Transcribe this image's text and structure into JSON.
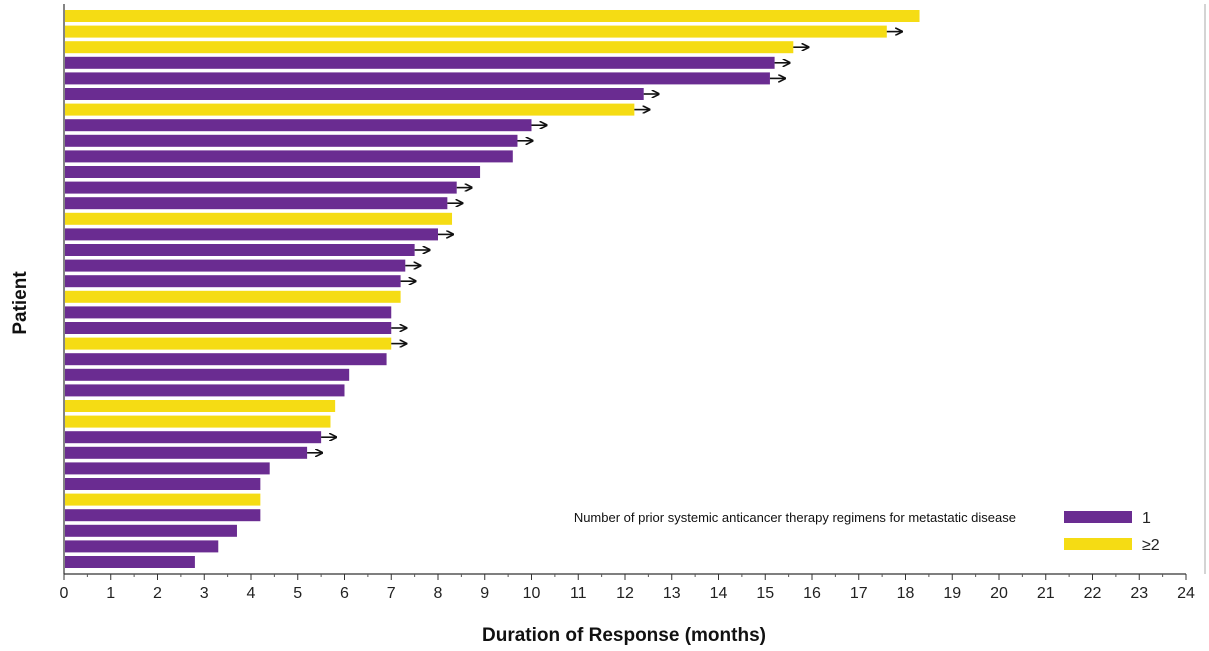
{
  "chart_data": {
    "type": "bar",
    "orientation": "horizontal",
    "xlabel": "Duration of Response (months)",
    "ylabel": "Patient",
    "xlim": [
      0,
      24
    ],
    "x_ticks": [
      0,
      1,
      2,
      3,
      4,
      5,
      6,
      7,
      8,
      9,
      10,
      11,
      12,
      13,
      14,
      15,
      16,
      17,
      18,
      19,
      20,
      21,
      22,
      23,
      24
    ],
    "grid": false,
    "legend": {
      "title": "Number of prior systemic anticancer therapy regimens for metastatic disease",
      "placement": "bottom-right",
      "entries": [
        {
          "label": "1",
          "color": "#6a2c91"
        },
        {
          "label": "≥2",
          "color": "#f5dc14"
        }
      ]
    },
    "ongoing_marker": "arrow",
    "bars": [
      {
        "value": 18.3,
        "group": "≥2",
        "ongoing": false
      },
      {
        "value": 17.6,
        "group": "≥2",
        "ongoing": true
      },
      {
        "value": 15.6,
        "group": "≥2",
        "ongoing": true
      },
      {
        "value": 15.2,
        "group": "1",
        "ongoing": true
      },
      {
        "value": 15.1,
        "group": "1",
        "ongoing": true
      },
      {
        "value": 12.4,
        "group": "1",
        "ongoing": true
      },
      {
        "value": 12.2,
        "group": "≥2",
        "ongoing": true
      },
      {
        "value": 10.0,
        "group": "1",
        "ongoing": true
      },
      {
        "value": 9.7,
        "group": "1",
        "ongoing": true
      },
      {
        "value": 9.6,
        "group": "1",
        "ongoing": false
      },
      {
        "value": 8.9,
        "group": "1",
        "ongoing": false
      },
      {
        "value": 8.4,
        "group": "1",
        "ongoing": true
      },
      {
        "value": 8.2,
        "group": "1",
        "ongoing": true
      },
      {
        "value": 8.3,
        "group": "≥2",
        "ongoing": false
      },
      {
        "value": 8.0,
        "group": "1",
        "ongoing": true
      },
      {
        "value": 7.5,
        "group": "1",
        "ongoing": true
      },
      {
        "value": 7.3,
        "group": "1",
        "ongoing": true
      },
      {
        "value": 7.2,
        "group": "1",
        "ongoing": true
      },
      {
        "value": 7.2,
        "group": "≥2",
        "ongoing": false
      },
      {
        "value": 7.0,
        "group": "1",
        "ongoing": false
      },
      {
        "value": 7.0,
        "group": "1",
        "ongoing": true
      },
      {
        "value": 7.0,
        "group": "≥2",
        "ongoing": true
      },
      {
        "value": 6.9,
        "group": "1",
        "ongoing": false
      },
      {
        "value": 6.1,
        "group": "1",
        "ongoing": false
      },
      {
        "value": 6.0,
        "group": "1",
        "ongoing": false
      },
      {
        "value": 5.8,
        "group": "≥2",
        "ongoing": false
      },
      {
        "value": 5.7,
        "group": "≥2",
        "ongoing": false
      },
      {
        "value": 5.5,
        "group": "1",
        "ongoing": true
      },
      {
        "value": 5.2,
        "group": "1",
        "ongoing": true
      },
      {
        "value": 4.4,
        "group": "1",
        "ongoing": false
      },
      {
        "value": 4.2,
        "group": "1",
        "ongoing": false
      },
      {
        "value": 4.2,
        "group": "≥2",
        "ongoing": false
      },
      {
        "value": 4.2,
        "group": "1",
        "ongoing": false
      },
      {
        "value": 3.7,
        "group": "1",
        "ongoing": false
      },
      {
        "value": 3.3,
        "group": "1",
        "ongoing": false
      },
      {
        "value": 2.8,
        "group": "1",
        "ongoing": false
      }
    ]
  }
}
